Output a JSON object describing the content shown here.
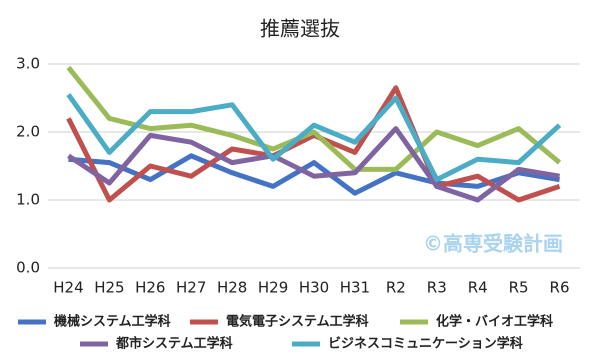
{
  "chart_data": {
    "type": "line",
    "title": "推薦選抜",
    "categories": [
      "H24",
      "H25",
      "H26",
      "H27",
      "H28",
      "H29",
      "H30",
      "H31",
      "R2",
      "R3",
      "R4",
      "R5",
      "R6"
    ],
    "series": [
      {
        "name": "機械システム工学科",
        "color": "#4472c4",
        "values": [
          1.6,
          1.55,
          1.3,
          1.65,
          1.4,
          1.2,
          1.55,
          1.1,
          1.4,
          1.25,
          1.2,
          1.4,
          1.3
        ]
      },
      {
        "name": "電気電子システム工学科",
        "color": "#c0504d",
        "values": [
          2.2,
          1.0,
          1.5,
          1.35,
          1.75,
          1.65,
          1.95,
          1.7,
          2.65,
          1.2,
          1.35,
          1.0,
          1.2
        ]
      },
      {
        "name": "化学・バイオ工学科",
        "color": "#9bbb59",
        "values": [
          2.95,
          2.2,
          2.05,
          2.1,
          1.95,
          1.75,
          2.0,
          1.45,
          1.45,
          2.0,
          1.8,
          2.05,
          1.55
        ]
      },
      {
        "name": "都市システム工学科",
        "color": "#8064a2",
        "values": [
          1.65,
          1.25,
          1.95,
          1.85,
          1.55,
          1.65,
          1.35,
          1.4,
          2.05,
          1.2,
          1.0,
          1.45,
          1.35
        ]
      },
      {
        "name": "ビジネスコミュニケーション学科",
        "color": "#4bacc6",
        "values": [
          2.55,
          1.7,
          2.3,
          2.3,
          2.4,
          1.6,
          2.1,
          1.85,
          2.5,
          1.3,
          1.6,
          1.55,
          2.1
        ]
      }
    ],
    "ylim": [
      0,
      3
    ],
    "yticks": [
      {
        "value": 0,
        "label": "0.0"
      },
      {
        "value": 1,
        "label": "1.0"
      },
      {
        "value": 2,
        "label": "2.0"
      },
      {
        "value": 3,
        "label": "3.0"
      }
    ],
    "grid": true,
    "annotation": "©高専受験計画"
  }
}
